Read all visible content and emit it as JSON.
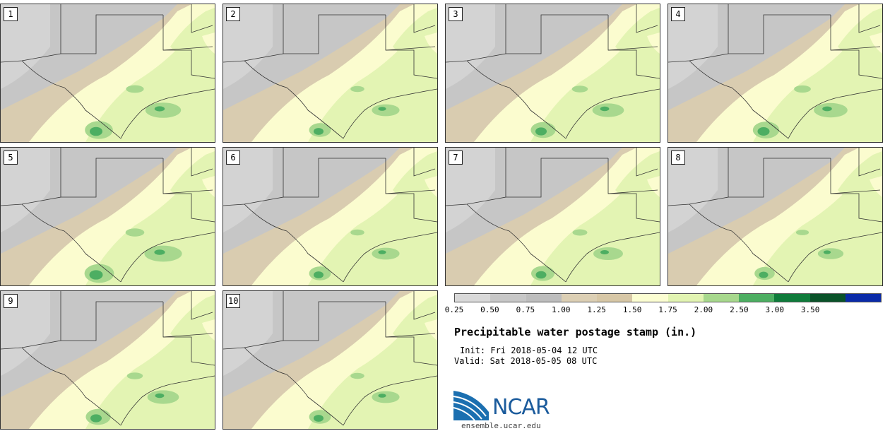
{
  "panels": [
    {
      "label": "1",
      "intensity": 0.9
    },
    {
      "label": "2",
      "intensity": 0.7
    },
    {
      "label": "3",
      "intensity": 0.8
    },
    {
      "label": "4",
      "intensity": 0.85
    },
    {
      "label": "5",
      "intensity": 0.95
    },
    {
      "label": "6",
      "intensity": 0.7
    },
    {
      "label": "7",
      "intensity": 0.75
    },
    {
      "label": "8",
      "intensity": 0.65
    },
    {
      "label": "9",
      "intensity": 0.8
    },
    {
      "label": "10",
      "intensity": 0.7
    }
  ],
  "colorbar": {
    "bins": [
      "#d9d9d9",
      "#c7c7c7",
      "#bdbdbd",
      "#dccfb4",
      "#d7c7a6",
      "#fcfed2",
      "#e2f4b2",
      "#a7d88d",
      "#4dae62",
      "#0f7b3b",
      "#0a5229",
      "#0a2aa8"
    ],
    "ticks": [
      "0.25",
      "0.50",
      "0.75",
      "1.00",
      "1.25",
      "1.50",
      "1.75",
      "2.00",
      "2.50",
      "3.00",
      "3.50"
    ]
  },
  "title": "Precipitable water postage stamp (in.)",
  "init_line": "Init: Fri 2018-05-04 12 UTC",
  "valid_line": "Valid: Sat 2018-05-05 08 UTC",
  "logo": {
    "text": "NCAR",
    "url": "ensemble.ucar.edu"
  }
}
